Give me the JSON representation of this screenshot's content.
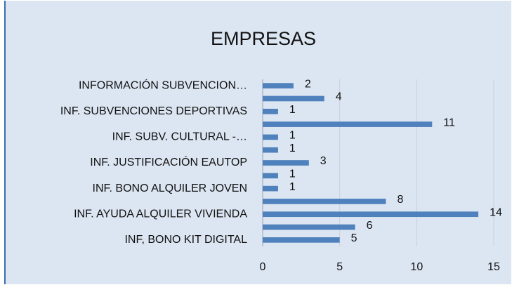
{
  "chart_data": {
    "type": "bar",
    "orientation": "horizontal",
    "title": "EMPRESAS",
    "categories": [
      "INFORMACIÓN SUBVENCION…",
      null,
      "INF. SUBVENCIONES DEPORTIVAS",
      null,
      "INF. SUBV. CULTURAL -…",
      null,
      "INF. JUSTIFICACIÓN EAUTOP",
      null,
      "INF. BONO ALQUILER JOVEN",
      null,
      "INF. AYUDA ALQUILER VIVIENDA",
      null,
      "INF, BONO KIT DIGITAL"
    ],
    "values": [
      2,
      4,
      1,
      11,
      1,
      1,
      3,
      1,
      1,
      8,
      14,
      6,
      5
    ],
    "color": "#4f81bd",
    "xlim": [
      0,
      15
    ],
    "xticks": [
      0,
      5,
      10,
      15
    ],
    "grid": true
  }
}
